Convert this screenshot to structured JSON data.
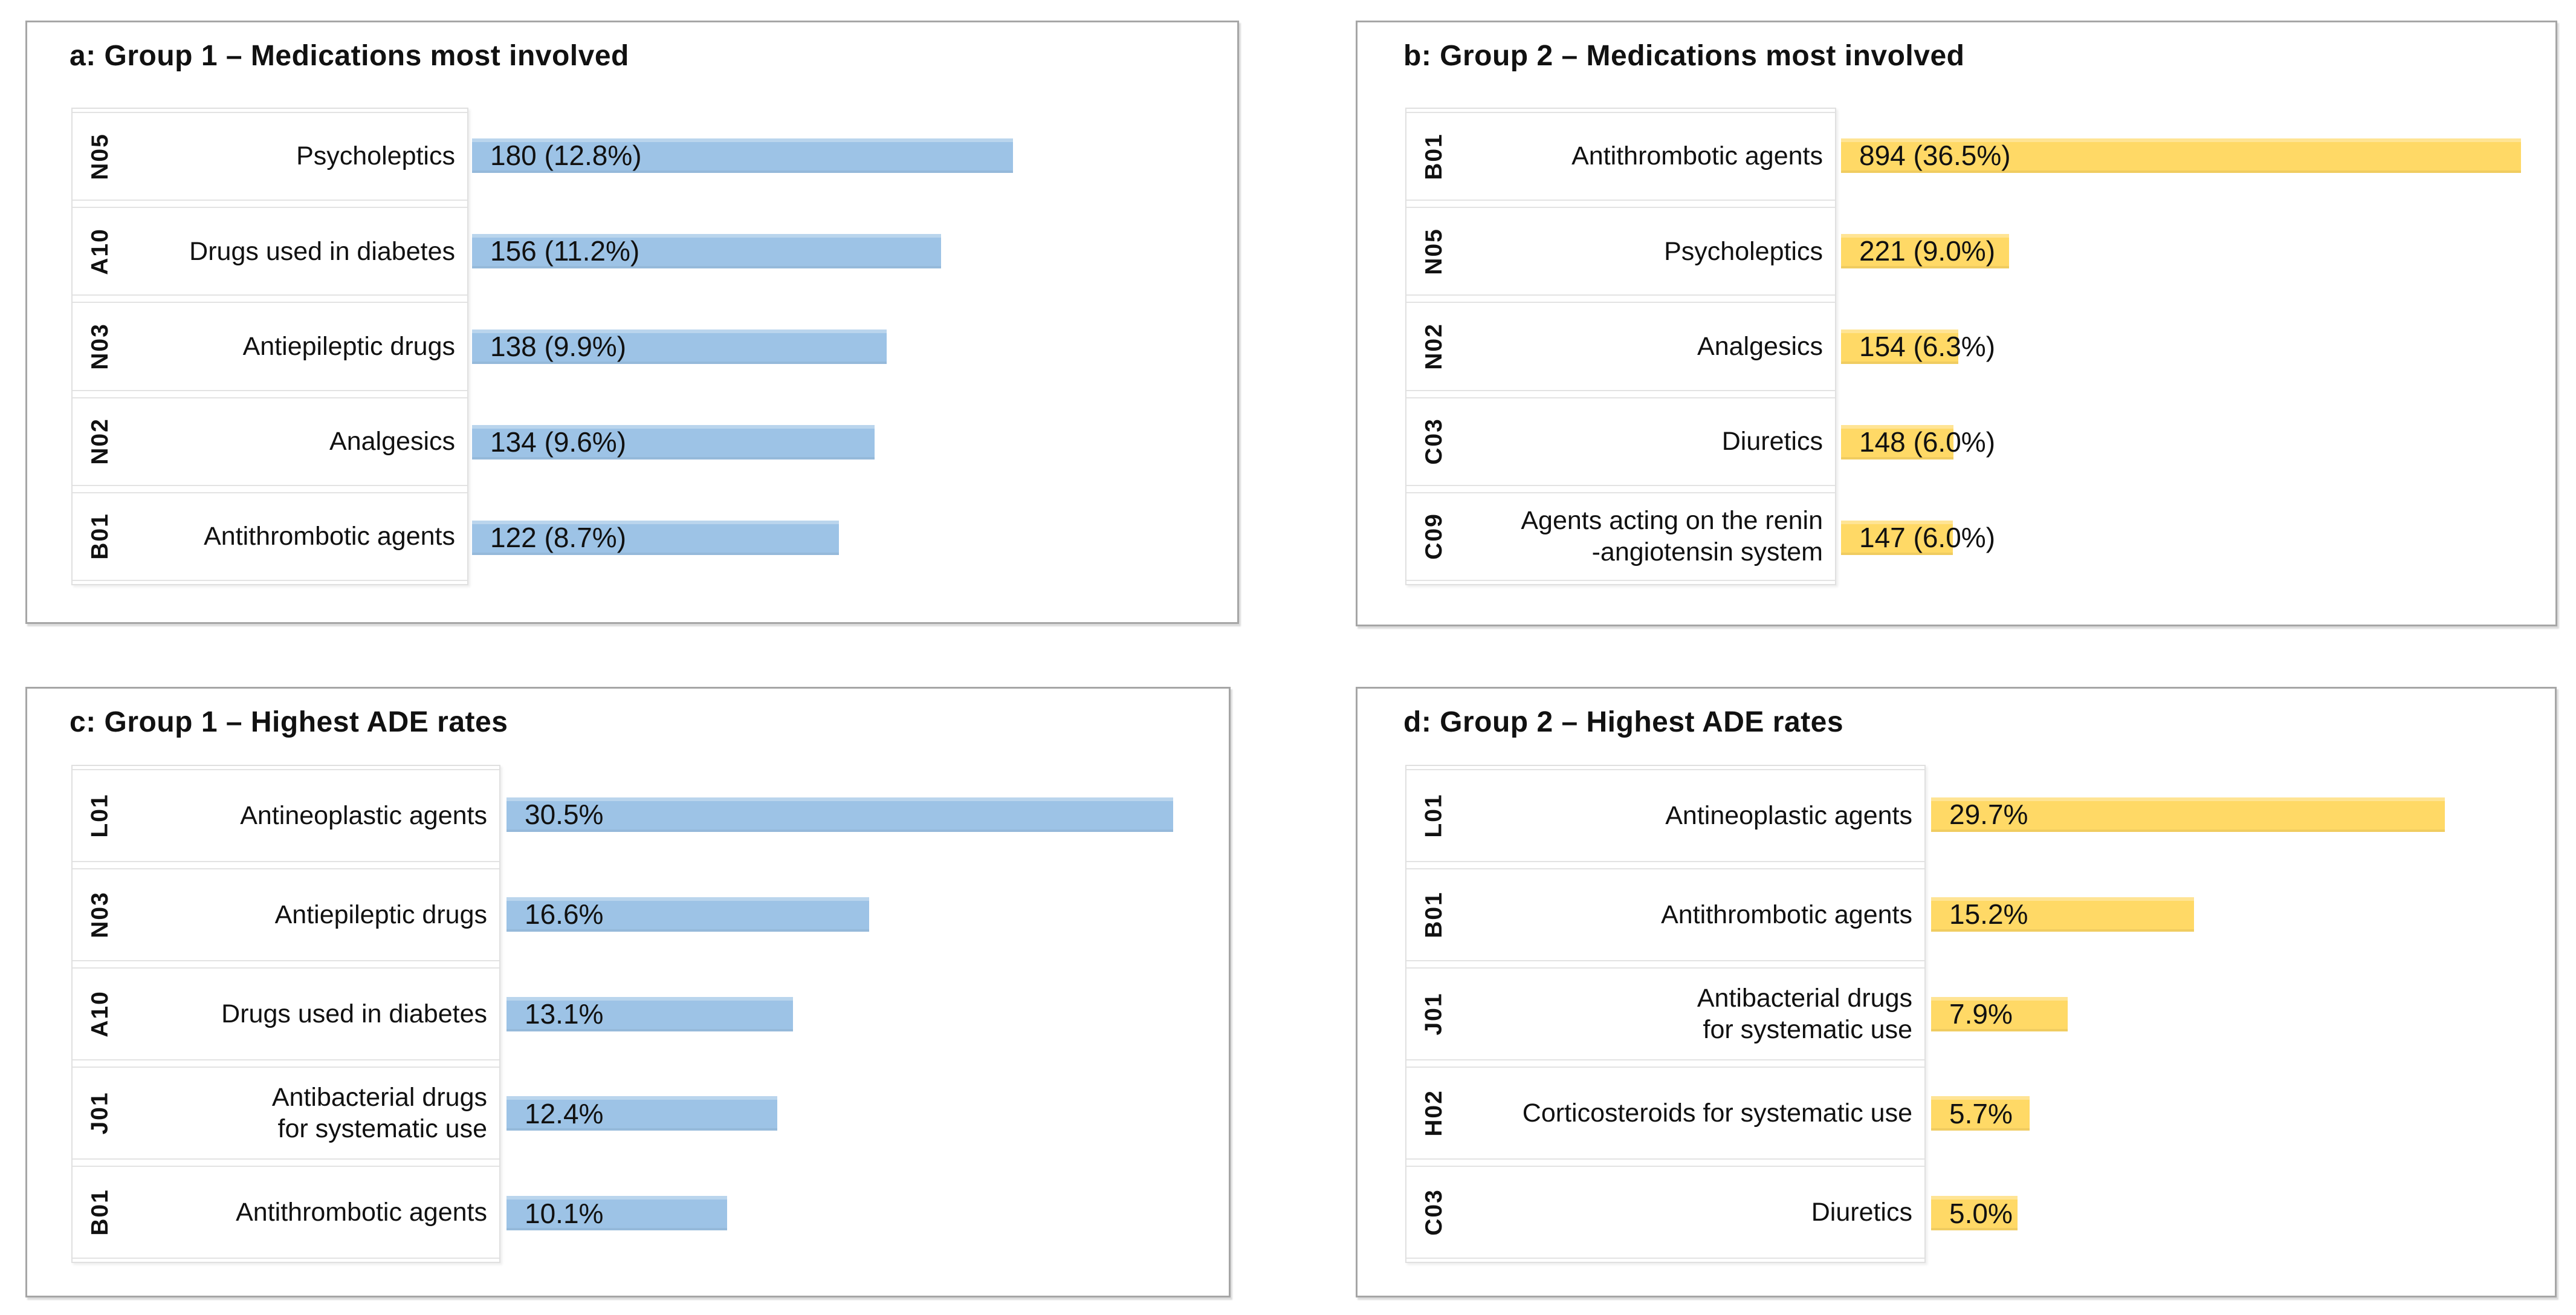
{
  "page": {
    "background": "#FFFFFF",
    "colors": {
      "group1_bar": "#9DC3E6",
      "group2_bar": "#FFD966",
      "panel_border": "#A6A6A6",
      "label_box_border": "#E0E0E0",
      "text": "#111111"
    }
  },
  "chart_data": [
    {
      "id": "a",
      "type": "bar",
      "orientation": "horizontal",
      "title": "a: Group 1 – Medications most involved",
      "bar_color": "#9DC3E6",
      "value_format": "count (percent)",
      "legend": "none",
      "grid": "off",
      "items": [
        {
          "code": "N05",
          "label": "Psycholeptics",
          "value": 180,
          "pct": 12.8,
          "value_label": "180 (12.8%)"
        },
        {
          "code": "A10",
          "label": "Drugs used in diabetes",
          "value": 156,
          "pct": 11.2,
          "value_label": "156 (11.2%)"
        },
        {
          "code": "N03",
          "label": "Antiepileptic drugs",
          "value": 138,
          "pct": 9.9,
          "value_label": "138 (9.9%)"
        },
        {
          "code": "N02",
          "label": "Analgesics",
          "value": 134,
          "pct": 9.6,
          "value_label": "134 (9.6%)"
        },
        {
          "code": "B01",
          "label": "Antithrombotic agents",
          "value": 122,
          "pct": 8.7,
          "value_label": "122 (8.7%)"
        }
      ]
    },
    {
      "id": "b",
      "type": "bar",
      "orientation": "horizontal",
      "title": "b: Group 2 – Medications most involved",
      "bar_color": "#FFD966",
      "value_format": "count (percent)",
      "legend": "none",
      "grid": "off",
      "items": [
        {
          "code": "B01",
          "label": "Antithrombotic agents",
          "value": 894,
          "pct": 36.5,
          "value_label": "894 (36.5%)"
        },
        {
          "code": "N05",
          "label": "Psycholeptics",
          "value": 221,
          "pct": 9.0,
          "value_label": "221 (9.0%)"
        },
        {
          "code": "N02",
          "label": "Analgesics",
          "value": 154,
          "pct": 6.3,
          "value_label": "154 (6.3%)"
        },
        {
          "code": "C03",
          "label": "Diuretics",
          "value": 148,
          "pct": 6.0,
          "value_label": "148 (6.0%)"
        },
        {
          "code": "C09",
          "label": "Agents acting on the renin\n-angiotensin system",
          "value": 147,
          "pct": 6.0,
          "value_label": "147 (6.0%)"
        }
      ]
    },
    {
      "id": "c",
      "type": "bar",
      "orientation": "horizontal",
      "title": "c: Group 1 – Highest ADE rates",
      "bar_color": "#9DC3E6",
      "value_format": "percent",
      "legend": "none",
      "grid": "off",
      "items": [
        {
          "code": "L01",
          "label": "Antineoplastic agents",
          "value": 30.5,
          "value_label": "30.5%"
        },
        {
          "code": "N03",
          "label": "Antiepileptic drugs",
          "value": 16.6,
          "value_label": "16.6%"
        },
        {
          "code": "A10",
          "label": "Drugs used in diabetes",
          "value": 13.1,
          "value_label": "13.1%"
        },
        {
          "code": "J01",
          "label": "Antibacterial drugs\nfor systematic use",
          "value": 12.4,
          "value_label": "12.4%"
        },
        {
          "code": "B01",
          "label": "Antithrombotic agents",
          "value": 10.1,
          "value_label": "10.1%"
        }
      ]
    },
    {
      "id": "d",
      "type": "bar",
      "orientation": "horizontal",
      "title": "d: Group 2 – Highest ADE rates",
      "bar_color": "#FFD966",
      "value_format": "percent",
      "legend": "none",
      "grid": "off",
      "items": [
        {
          "code": "L01",
          "label": "Antineoplastic agents",
          "value": 29.7,
          "value_label": "29.7%"
        },
        {
          "code": "B01",
          "label": "Antithrombotic agents",
          "value": 15.2,
          "value_label": "15.2%"
        },
        {
          "code": "J01",
          "label": "Antibacterial drugs\nfor systematic use",
          "value": 7.9,
          "value_label": "7.9%"
        },
        {
          "code": "H02",
          "label": "Corticosteroids for systematic use",
          "value": 5.7,
          "value_label": "5.7%"
        },
        {
          "code": "C03",
          "label": "Diuretics",
          "value": 5.0,
          "value_label": "5.0%"
        }
      ]
    }
  ]
}
